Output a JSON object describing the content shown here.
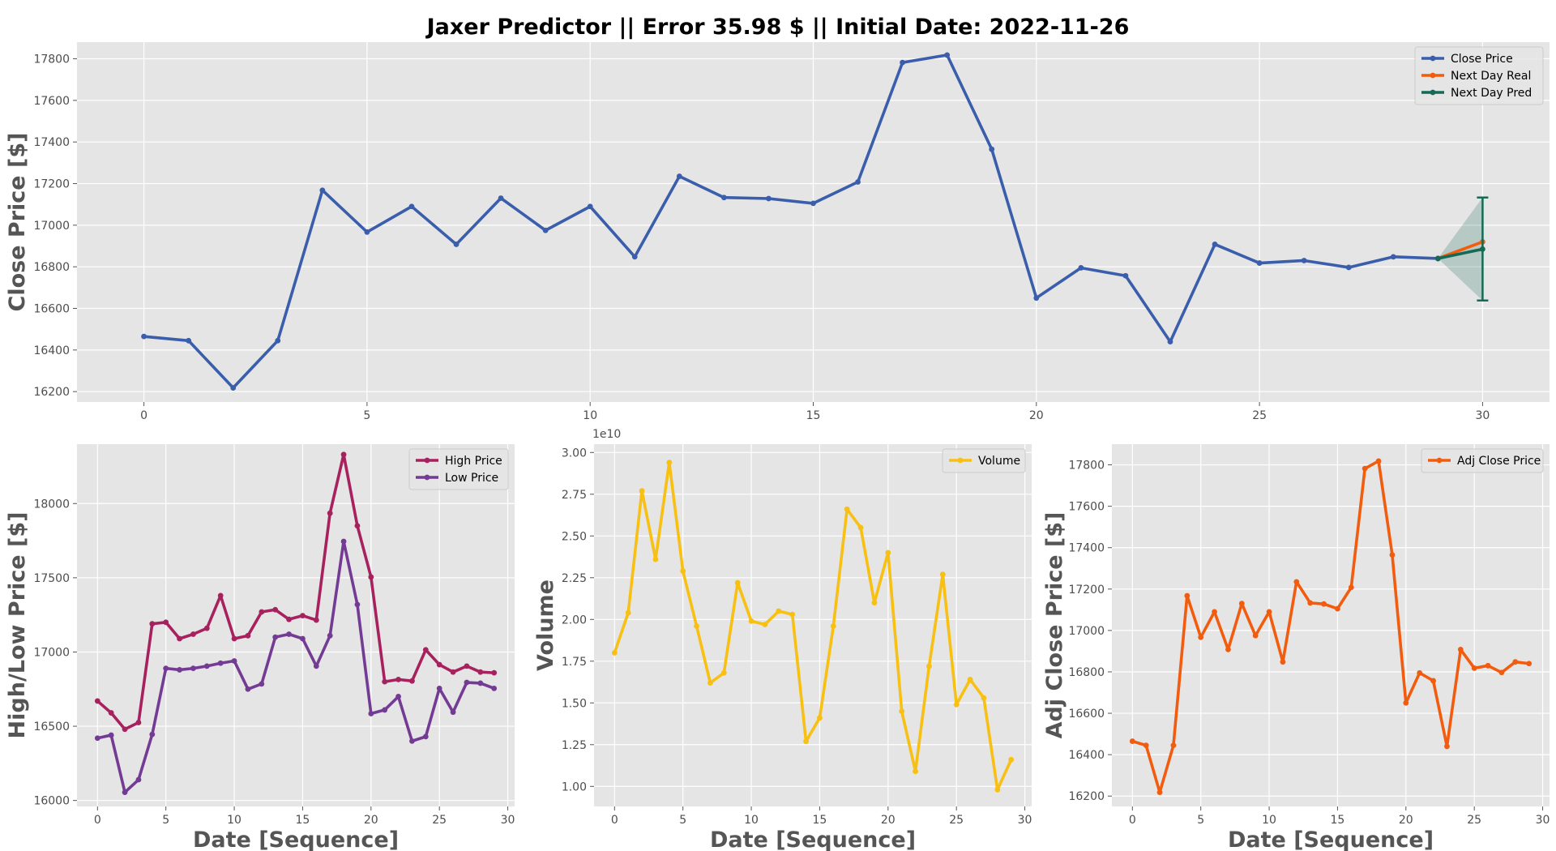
{
  "figure": {
    "title": "Jaxer Predictor || Error 35.98 $ || Initial Date: 2022-11-26"
  },
  "colors": {
    "close": "#3a5eab",
    "real": "#f25c0f",
    "pred": "#146a54",
    "high": "#a8215f",
    "low": "#733b94",
    "volume": "#f8c012",
    "adj": "#f25c0f",
    "panel_bg": "#e5e5e5",
    "grid": "#ffffff"
  },
  "chart_data": [
    {
      "type": "line",
      "xlabel": "",
      "ylabel": "Close Price [$]",
      "xlim": [
        -1.5,
        31.5
      ],
      "ylim": [
        16150,
        17880
      ],
      "xticks": [
        0,
        5,
        10,
        15,
        20,
        25,
        30
      ],
      "yticks": [
        16200,
        16400,
        16600,
        16800,
        17000,
        17200,
        17400,
        17600,
        17800
      ],
      "grid": true,
      "legend": "top-right",
      "series": [
        {
          "name": "Close Price",
          "color": "#3a5eab",
          "x": [
            0,
            1,
            2,
            3,
            4,
            5,
            6,
            7,
            8,
            9,
            10,
            11,
            12,
            13,
            14,
            15,
            16,
            17,
            18,
            19,
            20,
            21,
            22,
            23,
            24,
            25,
            26,
            27,
            28,
            29
          ],
          "y": [
            16465,
            16445,
            16218,
            16445,
            17168,
            16967,
            17090,
            16908,
            17130,
            16975,
            17090,
            16848,
            17235,
            17133,
            17128,
            17105,
            17208,
            17782,
            17818,
            17365,
            16650,
            16795,
            16757,
            16440,
            16908,
            16818,
            16830,
            16797,
            16848,
            16840
          ]
        },
        {
          "name": "Next Day Real",
          "color": "#f25c0f",
          "x": [
            29,
            30
          ],
          "y": [
            16840,
            16920
          ]
        },
        {
          "name": "Next Day Pred",
          "color": "#146a54",
          "x": [
            29,
            30
          ],
          "y": [
            16840,
            16885
          ],
          "error_bar": {
            "x": 30,
            "low": 16638,
            "high": 17133
          }
        }
      ]
    },
    {
      "type": "line",
      "xlabel": "Date [Sequence]",
      "ylabel": "High/Low Price [$]",
      "xlim": [
        -1.5,
        30.5
      ],
      "ylim": [
        15960,
        18400
      ],
      "xticks": [
        0,
        5,
        10,
        15,
        20,
        25,
        30
      ],
      "yticks": [
        16000,
        16500,
        17000,
        17500,
        18000
      ],
      "grid": true,
      "legend": "top-right",
      "series": [
        {
          "name": "High Price",
          "color": "#a8215f",
          "x": [
            0,
            1,
            2,
            3,
            4,
            5,
            6,
            7,
            8,
            9,
            10,
            11,
            12,
            13,
            14,
            15,
            16,
            17,
            18,
            19,
            20,
            21,
            22,
            23,
            24,
            25,
            26,
            27,
            28,
            29
          ],
          "y": [
            16670,
            16590,
            16480,
            16525,
            17190,
            17200,
            17090,
            17120,
            17160,
            17380,
            17090,
            17110,
            17270,
            17285,
            17220,
            17245,
            17215,
            17935,
            18330,
            17850,
            17505,
            16800,
            16815,
            16805,
            17015,
            16915,
            16865,
            16905,
            16865,
            16860
          ]
        },
        {
          "name": "Low Price",
          "color": "#733b94",
          "x": [
            0,
            1,
            2,
            3,
            4,
            5,
            6,
            7,
            8,
            9,
            10,
            11,
            12,
            13,
            14,
            15,
            16,
            17,
            18,
            19,
            20,
            21,
            22,
            23,
            24,
            25,
            26,
            27,
            28,
            29
          ],
          "y": [
            16420,
            16440,
            16055,
            16140,
            16445,
            16890,
            16880,
            16890,
            16905,
            16925,
            16940,
            16750,
            16785,
            17100,
            17120,
            17090,
            16905,
            17110,
            17745,
            17320,
            16585,
            16610,
            16700,
            16400,
            16430,
            16755,
            16595,
            16795,
            16790,
            16755
          ]
        }
      ]
    },
    {
      "type": "line",
      "xlabel": "Date [Sequence]",
      "ylabel": "Volume",
      "multiplier": "1e10",
      "xlim": [
        -1.5,
        30.5
      ],
      "ylim": [
        0.88,
        3.05
      ],
      "xticks": [
        0,
        5,
        10,
        15,
        20,
        25,
        30
      ],
      "yticks": [
        1.0,
        1.25,
        1.5,
        1.75,
        2.0,
        2.25,
        2.5,
        2.75,
        3.0
      ],
      "ytick_labels": [
        "1.00",
        "1.25",
        "1.50",
        "1.75",
        "2.00",
        "2.25",
        "2.50",
        "2.75",
        "3.00"
      ],
      "grid": true,
      "legend": "top-right",
      "series": [
        {
          "name": "Volume",
          "color": "#f8c012",
          "x": [
            0,
            1,
            2,
            3,
            4,
            5,
            6,
            7,
            8,
            9,
            10,
            11,
            12,
            13,
            14,
            15,
            16,
            17,
            18,
            19,
            20,
            21,
            22,
            23,
            24,
            25,
            26,
            27,
            28,
            29
          ],
          "y": [
            1.8,
            2.04,
            2.77,
            2.36,
            2.94,
            2.29,
            1.96,
            1.62,
            1.68,
            2.22,
            1.99,
            1.97,
            2.05,
            2.03,
            1.27,
            1.41,
            1.96,
            2.66,
            2.55,
            2.1,
            2.4,
            1.45,
            1.09,
            1.72,
            2.27,
            1.49,
            1.64,
            1.53,
            0.98,
            1.16
          ]
        }
      ]
    },
    {
      "type": "line",
      "xlabel": "Date [Sequence]",
      "ylabel": "Adj Close Price [$]",
      "xlim": [
        -1.5,
        30.5
      ],
      "ylim": [
        16150,
        17900
      ],
      "xticks": [
        0,
        5,
        10,
        15,
        20,
        25,
        30
      ],
      "yticks": [
        16200,
        16400,
        16600,
        16800,
        17000,
        17200,
        17400,
        17600,
        17800
      ],
      "grid": true,
      "legend": "top-right",
      "series": [
        {
          "name": "Adj Close Price",
          "color": "#f25c0f",
          "x": [
            0,
            1,
            2,
            3,
            4,
            5,
            6,
            7,
            8,
            9,
            10,
            11,
            12,
            13,
            14,
            15,
            16,
            17,
            18,
            19,
            20,
            21,
            22,
            23,
            24,
            25,
            26,
            27,
            28,
            29
          ],
          "y": [
            16465,
            16445,
            16218,
            16445,
            17168,
            16967,
            17090,
            16908,
            17130,
            16975,
            17090,
            16848,
            17235,
            17133,
            17128,
            17105,
            17208,
            17782,
            17818,
            17365,
            16650,
            16795,
            16757,
            16440,
            16908,
            16818,
            16830,
            16797,
            16848,
            16840
          ]
        }
      ]
    }
  ]
}
